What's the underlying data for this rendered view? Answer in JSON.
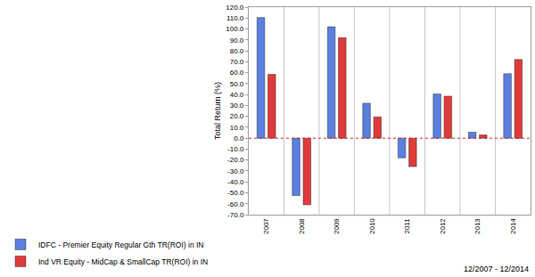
{
  "chart_data": {
    "type": "bar",
    "y_label": "Total Return (%)",
    "categories": [
      "2007",
      "2008",
      "2009",
      "2010",
      "2011",
      "2012",
      "2013",
      "2014"
    ],
    "series": [
      {
        "name": "IDFC - Premier Equity Regular Gth TR(ROI) in IN",
        "color": "#5a7fe0",
        "values": [
          110.5,
          -52.5,
          102,
          32,
          -18,
          40.5,
          5.5,
          59
        ]
      },
      {
        "name": "Ind VR Equity - MidCap & SmallCap TR(ROI) in IN",
        "color": "#e03a3a",
        "values": [
          58.5,
          -61,
          92,
          19.5,
          -26,
          38.5,
          3,
          72
        ]
      }
    ],
    "ylim": [
      -70,
      120
    ],
    "yticks": [
      {
        "value": -70,
        "label": "-70.0"
      },
      {
        "value": -60,
        "label": "-60.0"
      },
      {
        "value": -50,
        "label": "-50.0"
      },
      {
        "value": -40,
        "label": "-40.0"
      },
      {
        "value": -30,
        "label": "-30.0"
      },
      {
        "value": -20,
        "label": "-20.0"
      },
      {
        "value": -10,
        "label": "-10.0"
      },
      {
        "value": 0,
        "label": "0.0"
      },
      {
        "value": 10,
        "label": "10.0"
      },
      {
        "value": 20,
        "label": "20.0"
      },
      {
        "value": 30,
        "label": "30.0"
      },
      {
        "value": 40,
        "label": "40.0"
      },
      {
        "value": 50,
        "label": "50.0"
      },
      {
        "value": 60,
        "label": "60.0"
      },
      {
        "value": 70,
        "label": "70.0"
      },
      {
        "value": 80,
        "label": "80.0"
      },
      {
        "value": 90,
        "label": "90.0"
      },
      {
        "value": 100,
        "label": "100.0"
      },
      {
        "value": 110,
        "label": "110.0"
      },
      {
        "value": 120,
        "label": "120.0"
      }
    ],
    "legend": "bottom left",
    "annotations": [
      "12/2007 - 12/2014"
    ]
  }
}
